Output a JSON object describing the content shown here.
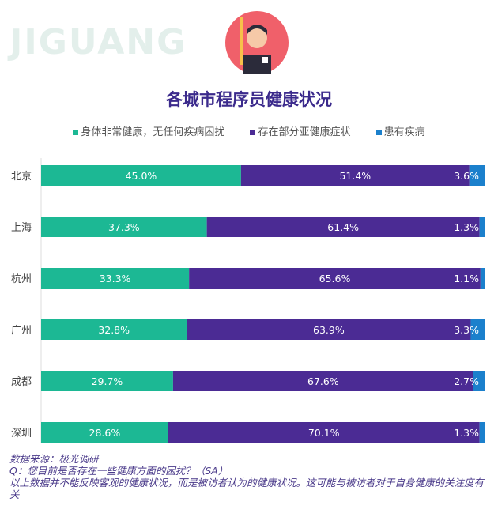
{
  "watermark": "JIGUANG",
  "colors": {
    "healthy": "#1cb894",
    "sub_health": "#4b2b94",
    "ill": "#1b80cc",
    "title": "#3b2a8c",
    "avatar_bg": "#f0606a"
  },
  "chart_data": {
    "type": "bar",
    "orientation": "horizontal",
    "stacked": true,
    "title": "各城市程序员健康状况",
    "legend_position": "top",
    "grid": false,
    "xlim": [
      0,
      100
    ],
    "categories": [
      "北京",
      "上海",
      "杭州",
      "广州",
      "成都",
      "深圳"
    ],
    "series": [
      {
        "name": "身体非常健康，无任何疾病困扰",
        "values": [
          45.0,
          37.3,
          33.3,
          32.8,
          29.7,
          28.6
        ]
      },
      {
        "name": "存在部分亚健康症状",
        "values": [
          51.4,
          61.4,
          65.6,
          63.9,
          67.6,
          70.1
        ]
      },
      {
        "name": "患有疾病",
        "values": [
          3.6,
          1.3,
          1.1,
          3.3,
          2.7,
          1.3
        ]
      }
    ]
  },
  "footer": {
    "source": "数据来源：极光调研",
    "question": "Q：您目前是否存在一些健康方面的困扰？（SA）",
    "note": "以上数据并不能反映客观的健康状况，而是被访者认为的健康状况。这可能与被访者对于自身健康的关注度有关"
  }
}
